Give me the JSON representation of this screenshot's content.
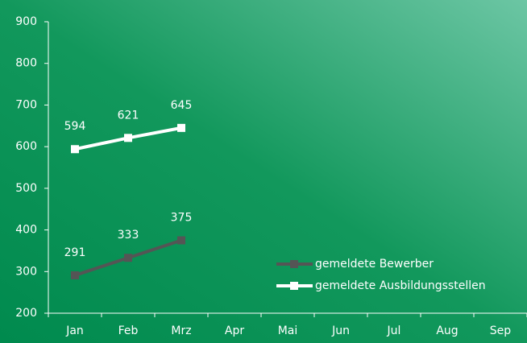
{
  "chart_data": {
    "type": "line",
    "categories": [
      "Jan",
      "Feb",
      "Mrz",
      "Apr",
      "Mai",
      "Jun",
      "Jul",
      "Aug",
      "Sep"
    ],
    "series": [
      {
        "name": "gemeldete Bewerber",
        "color": "#555555",
        "values": [
          291,
          333,
          375,
          null,
          null,
          null,
          null,
          null,
          null
        ]
      },
      {
        "name": "gemeldete Ausbildungsstellen",
        "color": "#ffffff",
        "values": [
          594,
          621,
          645,
          null,
          null,
          null,
          null,
          null,
          null
        ]
      }
    ],
    "ylim": [
      200,
      900
    ],
    "yticks": [
      200,
      300,
      400,
      500,
      600,
      700,
      800,
      900
    ],
    "legend": "lower right"
  }
}
